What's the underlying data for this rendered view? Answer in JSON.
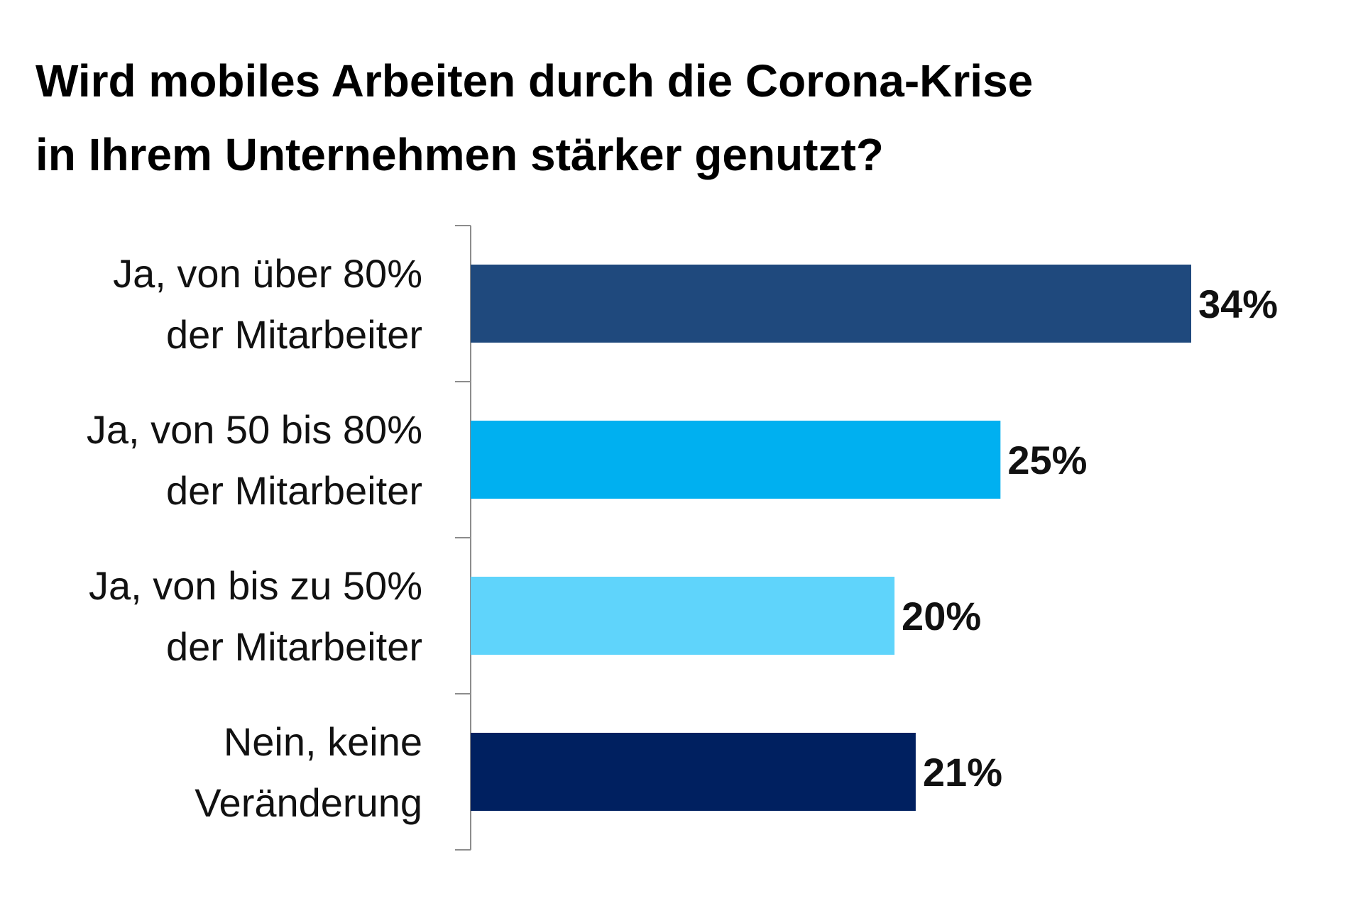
{
  "title_line1": "Wird mobiles Arbeiten durch die Corona-Krise",
  "title_line2": "in Ihrem Unternehmen stärker genutzt?",
  "chart_data": {
    "type": "bar",
    "orientation": "horizontal",
    "title": "Wird mobiles Arbeiten durch die Corona-Krise in Ihrem Unternehmen stärker genutzt?",
    "categories": [
      [
        "Ja, von über 80%",
        "der Mitarbeiter"
      ],
      [
        "Ja, von 50 bis 80%",
        "der Mitarbeiter"
      ],
      [
        "Ja, von bis zu 50%",
        "der Mitarbeiter"
      ],
      [
        "Nein, keine",
        "Veränderung"
      ]
    ],
    "values": [
      34,
      25,
      20,
      21
    ],
    "value_labels": [
      "34%",
      "25%",
      "20%",
      "21%"
    ],
    "colors": [
      "#1F497D",
      "#00B0F0",
      "#5FD4FB",
      "#002060"
    ],
    "xlabel": "",
    "ylabel": "",
    "grid": false,
    "legend": "none"
  }
}
